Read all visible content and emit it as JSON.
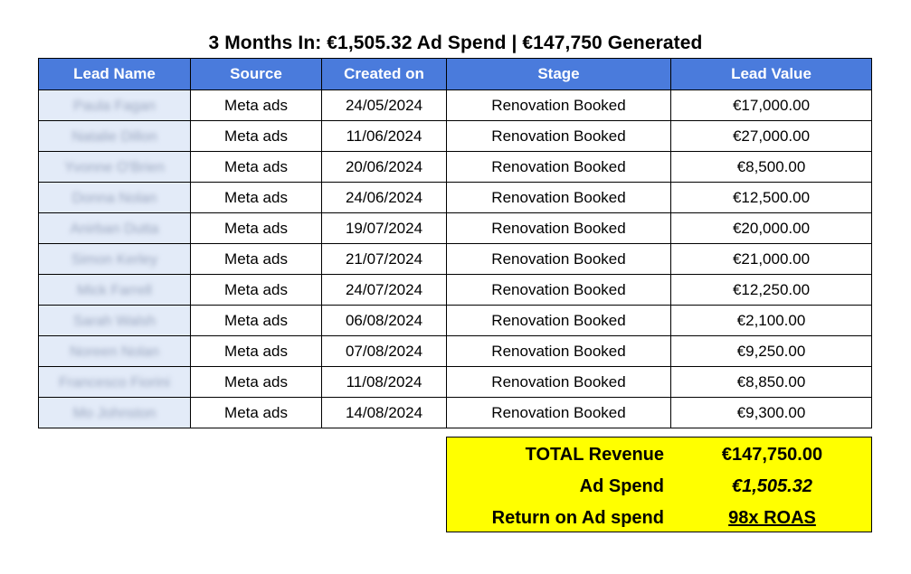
{
  "title": "3 Months In:  €1,505.32 Ad Spend | €147,750 Generated",
  "table": {
    "headers": [
      "Lead Name",
      "Source",
      "Created on",
      "Stage",
      "Lead Value"
    ],
    "rows": [
      {
        "name": "Paula Fagan",
        "source": "Meta ads",
        "created": "24/05/2024",
        "stage": "Renovation Booked",
        "value": "€17,000.00"
      },
      {
        "name": "Natalie Dillon",
        "source": "Meta ads",
        "created": "11/06/2024",
        "stage": "Renovation Booked",
        "value": "€27,000.00"
      },
      {
        "name": "Yvonne O'Brien",
        "source": "Meta ads",
        "created": "20/06/2024",
        "stage": "Renovation Booked",
        "value": "€8,500.00"
      },
      {
        "name": "Donna Nolan",
        "source": "Meta ads",
        "created": "24/06/2024",
        "stage": "Renovation Booked",
        "value": "€12,500.00"
      },
      {
        "name": "Anirban Dutta",
        "source": "Meta ads",
        "created": "19/07/2024",
        "stage": "Renovation Booked",
        "value": "€20,000.00"
      },
      {
        "name": "Simon Kerley",
        "source": "Meta ads",
        "created": "21/07/2024",
        "stage": "Renovation Booked",
        "value": "€21,000.00"
      },
      {
        "name": "Mick Farrell",
        "source": "Meta ads",
        "created": "24/07/2024",
        "stage": "Renovation Booked",
        "value": "€12,250.00"
      },
      {
        "name": "Sarah Walsh",
        "source": "Meta ads",
        "created": "06/08/2024",
        "stage": "Renovation Booked",
        "value": "€2,100.00"
      },
      {
        "name": "Noreen Nolan",
        "source": "Meta ads",
        "created": "07/08/2024",
        "stage": "Renovation Booked",
        "value": "€9,250.00"
      },
      {
        "name": "Francesco Fiorini",
        "source": "Meta ads",
        "created": "11/08/2024",
        "stage": "Renovation Booked",
        "value": "€8,850.00"
      },
      {
        "name": "Mo Johnston",
        "source": "Meta ads",
        "created": "14/08/2024",
        "stage": "Renovation Booked",
        "value": "€9,300.00"
      }
    ]
  },
  "totals": {
    "revenue_label": "TOTAL Revenue",
    "revenue_value": "€147,750.00",
    "spend_label": "Ad Spend",
    "spend_value": "€1,505.32",
    "roas_label": "Return on Ad spend",
    "roas_value": "98x ROAS"
  },
  "colors": {
    "header_bg": "#4a7bdc",
    "name_cell_bg": "#e3ebf8",
    "totals_bg": "#ffff00"
  }
}
